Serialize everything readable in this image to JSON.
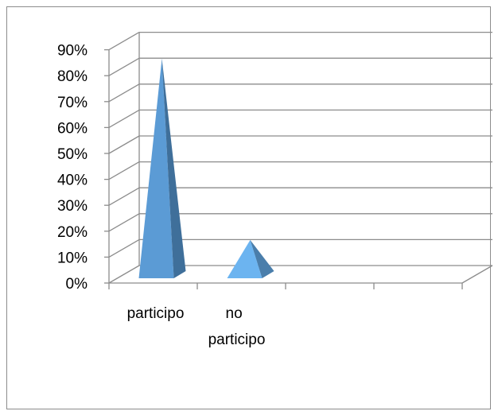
{
  "chart_data": {
    "type": "bar",
    "style": "3d-pyramid",
    "categories": [
      [
        "participo"
      ],
      [
        "no",
        "participo"
      ]
    ],
    "values": [
      0.86,
      0.16
    ],
    "y_ticks": [
      "0%",
      "10%",
      "20%",
      "30%",
      "40%",
      "50%",
      "60%",
      "70%",
      "80%",
      "90%"
    ],
    "ylim": [
      0,
      0.9
    ],
    "grid": true,
    "legend": false,
    "colors": {
      "front": [
        "#5b9bd5",
        "#6cb4f0"
      ],
      "side": [
        "#3f6f9a",
        "#4a7eab"
      ],
      "grid": "#8c8c8c"
    }
  }
}
